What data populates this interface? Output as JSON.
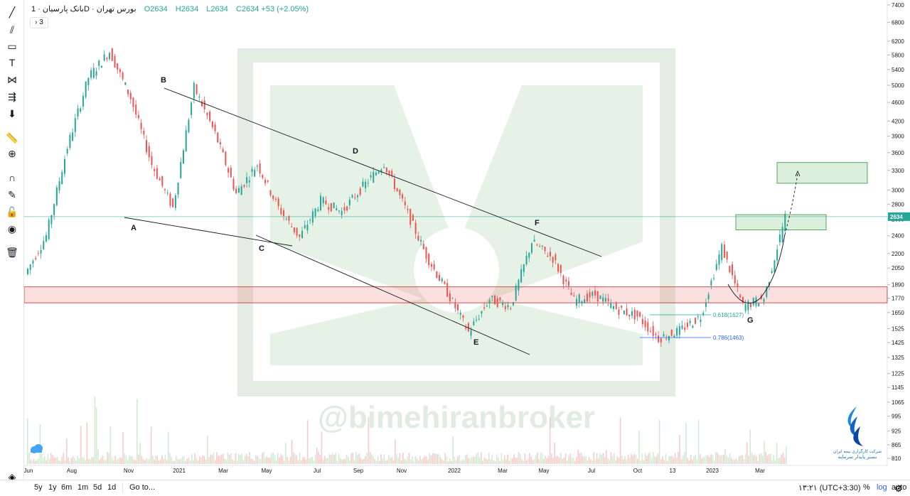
{
  "legend": {
    "symbol": "بانک پارسیان",
    "interval": "1D",
    "exchange": "بورس تهران",
    "open": "O2634",
    "high": "H2634",
    "low": "L2634",
    "close": "C2634",
    "change": "+53 (+2.05%)",
    "indicators_collapsed": "3"
  },
  "toolbar": {
    "icons": [
      "trend-line-icon",
      "pitchfork-icon",
      "rectangle-icon",
      "text-icon",
      "pattern-icon",
      "measure-icon",
      "arrow-down-icon",
      "ruler-icon",
      "zoom-in-icon",
      "magnet-icon",
      "lock-pencil-icon",
      "lock-icon",
      "eye-icon",
      "trash-icon",
      "layers-icon"
    ]
  },
  "bottom_bar": {
    "ranges": [
      "5y",
      "1y",
      "6m",
      "1m",
      "5d",
      "1d"
    ],
    "goto": "Go to...",
    "time": "۱۳:۲۱ (UTC+3:30)",
    "percent": "%",
    "log": "log",
    "auto": "auto"
  },
  "watermark": "@bimehiranbroker",
  "brand": {
    "line1": "شرکت کارگزاری بیمه ایران",
    "line2": "بستر پایدار سرمایه"
  },
  "colors": {
    "up": "#26a69a",
    "down": "#ef5350",
    "accent": "#2962ff",
    "zone_green": "#4caf50",
    "zone_red": "#ef5350"
  },
  "chart_data": {
    "type": "candlestick",
    "price_scale": "log",
    "y_ticks": [
      810,
      865,
      925,
      995,
      1065,
      1145,
      1225,
      1325,
      1425,
      1525,
      1650,
      1770,
      1890,
      2050,
      2200,
      2400,
      2600,
      2800,
      3000,
      3300,
      3600,
      3900,
      4200,
      4600,
      5000,
      5400,
      5800,
      6200,
      6800,
      7400
    ],
    "ylim": [
      780,
      7600
    ],
    "x_ticks": [
      "Jun",
      "Aug",
      "Nov",
      "2021",
      "Mar",
      "May",
      "Jul",
      "Sep",
      "Nov",
      "2022",
      "Mar",
      "May",
      "Jul",
      "Oct",
      "13",
      "2023",
      "Mar"
    ],
    "last_price": 2634,
    "price_path": [
      [
        "Jun 2020",
        1990
      ],
      [
        "Jul 2020",
        2400
      ],
      [
        "Jul 2020",
        3700
      ],
      [
        "Aug 2020",
        5200
      ],
      [
        "Aug 2020",
        5900
      ],
      [
        "Sep 2020",
        4700
      ],
      [
        "Oct 2020",
        3400
      ],
      [
        "Nov 2020",
        2750
      ],
      [
        "Dec 2020",
        4950
      ],
      [
        "Jan 2021",
        3950
      ],
      [
        "Feb 2021",
        2950
      ],
      [
        "Mar 2021",
        3400
      ],
      [
        "Apr 2021",
        2750
      ],
      [
        "May 2021",
        2380
      ],
      [
        "Jun 2021",
        2850
      ],
      [
        "Jul 2021",
        2700
      ],
      [
        "Aug 2021",
        3050
      ],
      [
        "Sep 2021",
        3420
      ],
      [
        "Oct 2021",
        2750
      ],
      [
        "Nov 2021",
        2180
      ],
      [
        "Dec 2021",
        1820
      ],
      [
        "Jan 2022",
        1500
      ],
      [
        "Feb 2022",
        1760
      ],
      [
        "Mar 2022",
        1700
      ],
      [
        "Apr 2022",
        2330
      ],
      [
        "May 2022",
        2150
      ],
      [
        "Jun 2022",
        1750
      ],
      [
        "Jul 2022",
        1800
      ],
      [
        "Aug 2022",
        1680
      ],
      [
        "Sep 2022",
        1620
      ],
      [
        "Oct 2022",
        1455
      ],
      [
        "Nov 2022",
        1510
      ],
      [
        "Dec 2022",
        1620
      ],
      [
        "Jan 2023",
        2270
      ],
      [
        "Feb 2023",
        1700
      ],
      [
        "Mar 2023",
        1770
      ],
      [
        "Apr 2023",
        2634
      ]
    ],
    "wave_labels": [
      "A",
      "B",
      "C",
      "D",
      "E",
      "F",
      "G"
    ],
    "fib_labels": [
      "0.618(1627)",
      "0.786(1463)"
    ],
    "zones": {
      "support_band": [
        1730,
        1870
      ],
      "target_1": [
        2470,
        2660
      ],
      "target_2": [
        3100,
        3430
      ]
    },
    "volume_series_shown": true
  }
}
